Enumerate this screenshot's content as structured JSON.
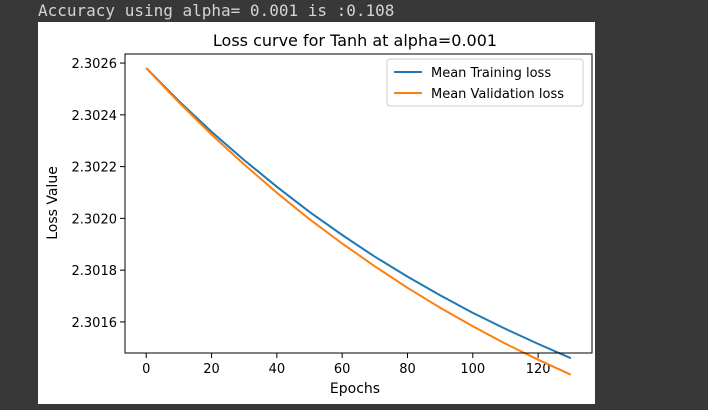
{
  "console": {
    "output_line": "Accuracy using alpha= 0.001 is :0.108"
  },
  "colors": {
    "background": "#383838",
    "training": "#1f77b4",
    "validation": "#ff7f0e"
  },
  "chart_data": {
    "type": "line",
    "title": "Loss curve for Tanh at alpha=0.001",
    "xlabel": "Epochs",
    "ylabel": "Loss Value",
    "xlim": [
      -6.5,
      136.5
    ],
    "ylim": [
      2.30148,
      2.302635
    ],
    "xticks": [
      0,
      20,
      40,
      60,
      80,
      100,
      120
    ],
    "yticks": [
      2.3016,
      2.3018,
      2.302,
      2.3022,
      2.3024,
      2.3026
    ],
    "ytick_labels": [
      "2.3016",
      "2.3018",
      "2.3020",
      "2.3022",
      "2.3024",
      "2.3026"
    ],
    "grid": false,
    "legend_position": "upper right",
    "x": [
      0,
      10,
      20,
      30,
      40,
      50,
      60,
      70,
      80,
      90,
      100,
      110,
      120,
      130
    ],
    "series": [
      {
        "name": "Mean Training loss",
        "color": "#1f77b4",
        "values": [
          2.302581,
          2.302453,
          2.302335,
          2.302225,
          2.302122,
          2.302025,
          2.301936,
          2.301852,
          2.301775,
          2.301703,
          2.301635,
          2.301573,
          2.301515,
          2.30146
        ]
      },
      {
        "name": "Mean Validation loss",
        "color": "#ff7f0e",
        "values": [
          2.302581,
          2.302448,
          2.302324,
          2.302208,
          2.302099,
          2.301997,
          2.301903,
          2.301815,
          2.301732,
          2.301655,
          2.301583,
          2.301516,
          2.301454,
          2.301396
        ]
      }
    ]
  }
}
